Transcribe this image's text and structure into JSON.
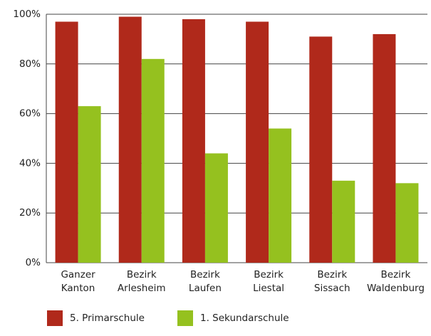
{
  "chart_data": {
    "type": "bar",
    "categories": [
      [
        "Ganzer",
        "Kanton"
      ],
      [
        "Bezirk",
        "Arlesheim"
      ],
      [
        "Bezirk",
        "Laufen"
      ],
      [
        "Bezirk",
        "Liestal"
      ],
      [
        "Bezirk",
        "Sissach"
      ],
      [
        "Bezirk",
        "Waldenburg"
      ]
    ],
    "series": [
      {
        "name": "5. Primarschule",
        "color": "#b0291b",
        "values": [
          97,
          99,
          98,
          97,
          91,
          92
        ]
      },
      {
        "name": "1. Sekundarschule",
        "color": "#95c11f",
        "values": [
          63,
          82,
          44,
          54,
          33,
          32
        ]
      }
    ],
    "ylim": [
      0,
      100
    ],
    "yticks": [
      {
        "value": 0,
        "label": "0%"
      },
      {
        "value": 20,
        "label": "20%"
      },
      {
        "value": 40,
        "label": "40%"
      },
      {
        "value": 60,
        "label": "60%"
      },
      {
        "value": 80,
        "label": "80%"
      },
      {
        "value": 100,
        "label": "100%"
      }
    ],
    "grid": true,
    "legend": "bottom"
  }
}
